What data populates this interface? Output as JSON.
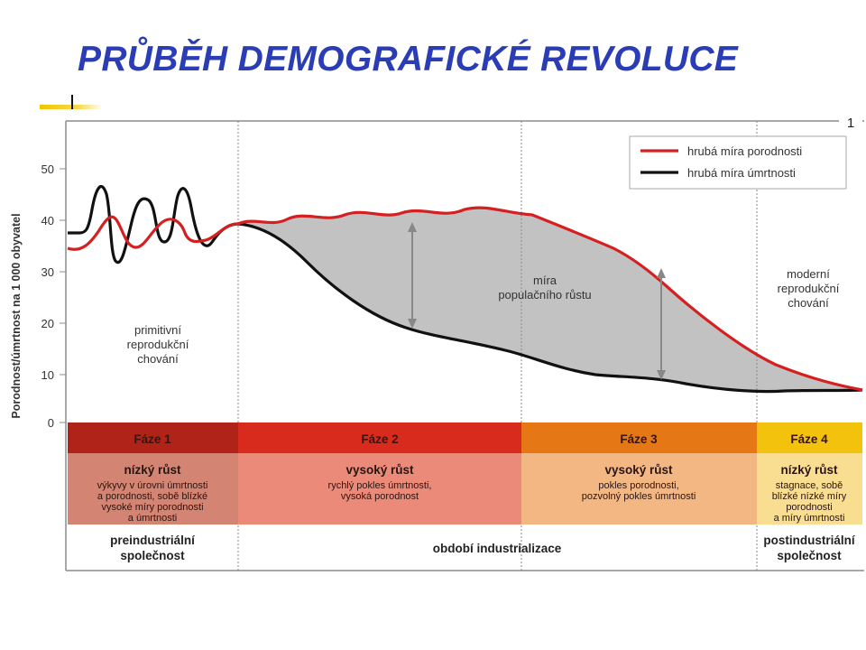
{
  "slide": {
    "title": "PRŮBĚH DEMOGRAFICKÉ REVOLUCE",
    "page_number": "1"
  },
  "colors": {
    "title": "#2b3db5",
    "accent": "#f2c500",
    "birth_line": "#d42020",
    "death_line": "#111111",
    "growth_fill": "#c2c2c2"
  },
  "axis": {
    "label": "Porodnost/úmrtnost na 1 000 obyvatel",
    "ticks": [
      "50",
      "40",
      "30",
      "20",
      "10",
      "0"
    ]
  },
  "legend": {
    "birth": "hrubá míra porodnosti",
    "death": "hrubá míra úmrtnosti"
  },
  "annotations": {
    "primitive": [
      "primitivní",
      "reprodukční",
      "chování"
    ],
    "growth": [
      "míra",
      "populačního růstu"
    ],
    "modern": [
      "moderní",
      "reprodukční",
      "chování"
    ]
  },
  "phases": [
    {
      "name": "Fáze 1",
      "title": "nízký růst",
      "desc": [
        "výkyvy v úrovni úmrtnosti",
        "a porodnosti, sobě blízké",
        "vysoké míry porodnosti",
        "a úmrtnosti"
      ],
      "color": "#b02318",
      "light": "#d48472"
    },
    {
      "name": "Fáze 2",
      "title": "vysoký růst",
      "desc": [
        "rychlý pokles úmrtnosti,",
        "vysoká porodnost"
      ],
      "color": "#d92a1e",
      "light": "#eb8a78"
    },
    {
      "name": "Fáze 3",
      "title": "vysoký růst",
      "desc": [
        "pokles porodnosti,",
        "pozvolný pokles úmrtnosti"
      ],
      "color": "#e57714",
      "light": "#f3b784"
    },
    {
      "name": "Fáze 4",
      "title": "nízký růst",
      "desc": [
        "stagnace, sobě",
        "blízké nízké míry",
        "porodnosti",
        "a míry úmrtnosti"
      ],
      "color": "#f3c20d",
      "light": "#f9dd91"
    }
  ],
  "eras": [
    "preindustriální společnost",
    "období industrializace",
    "postindustriální společnost"
  ]
}
